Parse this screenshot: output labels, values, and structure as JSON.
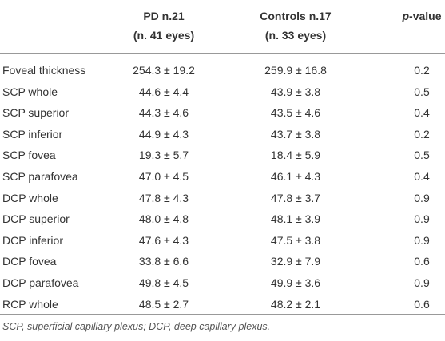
{
  "table": {
    "header": [
      [
        "",
        ""
      ],
      [
        "PD n.21",
        "(n. 41 eyes)"
      ],
      [
        "Controls n.17",
        "(n. 33 eyes)"
      ],
      [
        {
          "italic": "p",
          "rest": "-value"
        },
        ""
      ]
    ],
    "rows": [
      [
        "Foveal thickness",
        "254.3 ± 19.2",
        "259.9 ± 16.8",
        "0.2"
      ],
      [
        "SCP whole",
        "44.6 ± 4.4",
        "43.9 ± 3.8",
        "0.5"
      ],
      [
        "SCP superior",
        "44.3 ± 4.6",
        "43.5 ± 4.6",
        "0.4"
      ],
      [
        "SCP inferior",
        "44.9 ± 4.3",
        "43.7 ± 3.8",
        "0.2"
      ],
      [
        "SCP fovea",
        "19.3 ± 5.7",
        "18.4 ± 5.9",
        "0.5"
      ],
      [
        "SCP parafovea",
        "47.0 ± 4.5",
        "46.1 ± 4.3",
        "0.4"
      ],
      [
        "DCP whole",
        "47.8 ± 4.3",
        "47.8 ± 3.7",
        "0.9"
      ],
      [
        "DCP superior",
        "48.0 ± 4.8",
        "48.1 ± 3.9",
        "0.9"
      ],
      [
        "DCP inferior",
        "47.6 ± 4.3",
        "47.5 ± 3.8",
        "0.9"
      ],
      [
        "DCP fovea",
        "33.8 ± 6.6",
        "32.9 ± 7.9",
        "0.6"
      ],
      [
        "DCP parafovea",
        "49.8 ± 4.5",
        "49.9 ± 3.6",
        "0.9"
      ],
      [
        "RCP whole",
        "48.5 ± 2.7",
        "48.2 ± 2.1",
        "0.6"
      ]
    ],
    "footnote": "SCP, superficial capillary plexus; DCP, deep capillary plexus."
  }
}
